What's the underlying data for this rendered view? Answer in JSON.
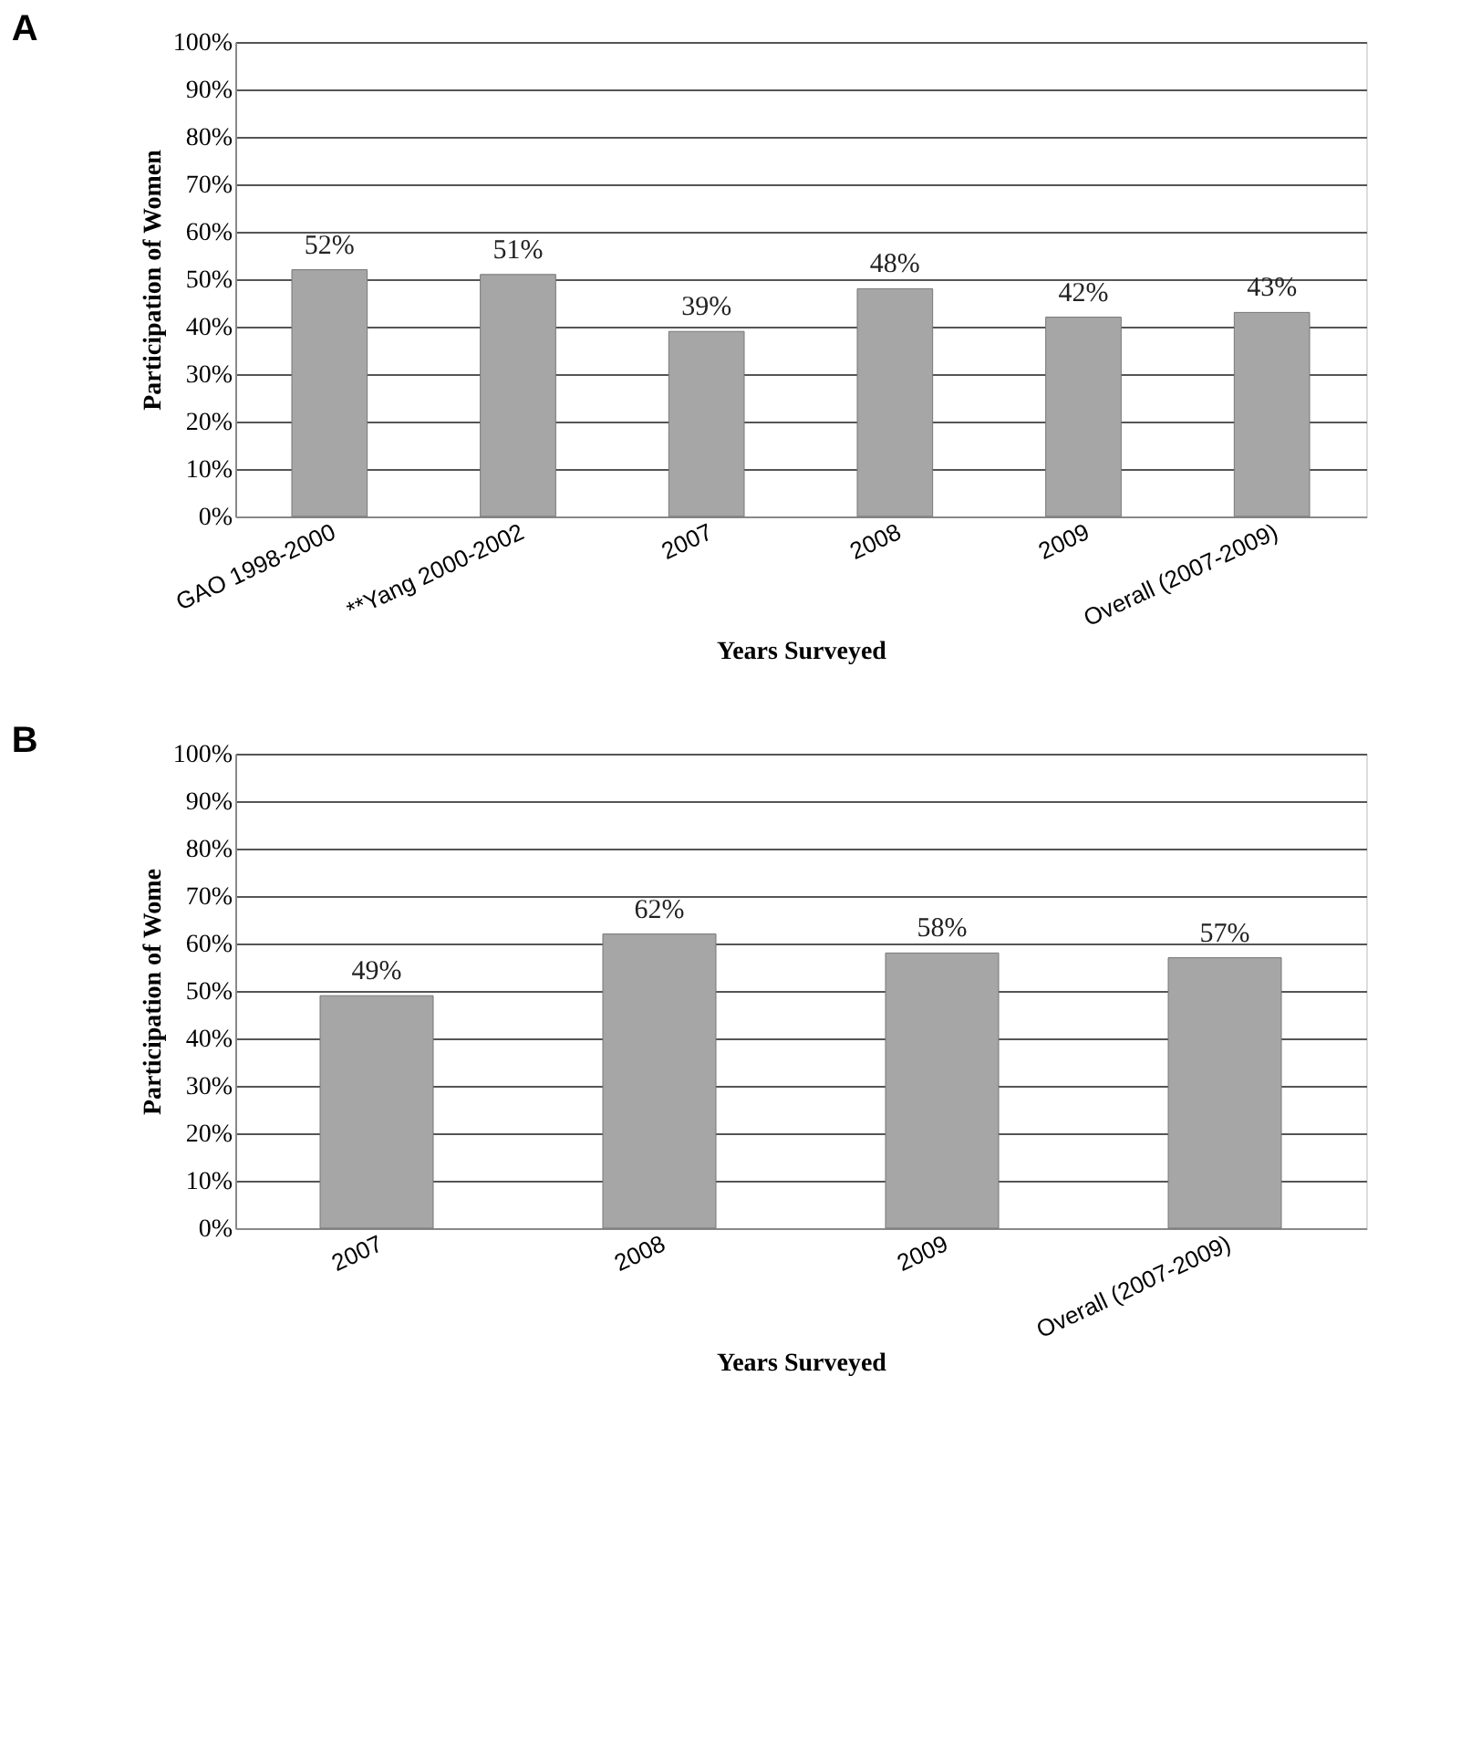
{
  "chart_data": [
    {
      "type": "bar",
      "title": "A",
      "xlabel": "Years Surveyed",
      "ylabel": "Participation of Women",
      "categories": [
        "GAO 1998-2000",
        "**Yang 2000-2002",
        "2007",
        "2008",
        "2009",
        "Overall (2007-2009)"
      ],
      "values": [
        52,
        51,
        39,
        48,
        42,
        43
      ],
      "value_labels": [
        "52%",
        "51%",
        "39%",
        "48%",
        "42%",
        "43%"
      ],
      "color": "#a6a6a6",
      "ylim": [
        0,
        100
      ],
      "yticks": [
        {
          "value": 0,
          "label": "0%"
        },
        {
          "value": 10,
          "label": "10%"
        },
        {
          "value": 20,
          "label": "20%"
        },
        {
          "value": 30,
          "label": "30%"
        },
        {
          "value": 40,
          "label": "40%"
        },
        {
          "value": 50,
          "label": "50%"
        },
        {
          "value": 60,
          "label": "60%"
        },
        {
          "value": 70,
          "label": "70%"
        },
        {
          "value": 80,
          "label": "80%"
        },
        {
          "value": 90,
          "label": "90%"
        },
        {
          "value": 100,
          "label": "100%"
        }
      ],
      "grid": "y"
    },
    {
      "type": "bar",
      "title": "B",
      "xlabel": "Years Surveyed",
      "ylabel": "Participation of Wome",
      "categories": [
        "2007",
        "2008",
        "2009",
        "Overall (2007-2009)"
      ],
      "values": [
        49,
        62,
        58,
        57
      ],
      "value_labels": [
        "49%",
        "62%",
        "58%",
        "57%"
      ],
      "color": "#a6a6a6",
      "ylim": [
        0,
        100
      ],
      "yticks": [
        {
          "value": 0,
          "label": "0%"
        },
        {
          "value": 10,
          "label": "10%"
        },
        {
          "value": 20,
          "label": "20%"
        },
        {
          "value": 30,
          "label": "30%"
        },
        {
          "value": 40,
          "label": "40%"
        },
        {
          "value": 50,
          "label": "50%"
        },
        {
          "value": 60,
          "label": "60%"
        },
        {
          "value": 70,
          "label": "70%"
        },
        {
          "value": 80,
          "label": "80%"
        },
        {
          "value": 90,
          "label": "90%"
        },
        {
          "value": 100,
          "label": "100%"
        }
      ],
      "grid": "y"
    }
  ]
}
